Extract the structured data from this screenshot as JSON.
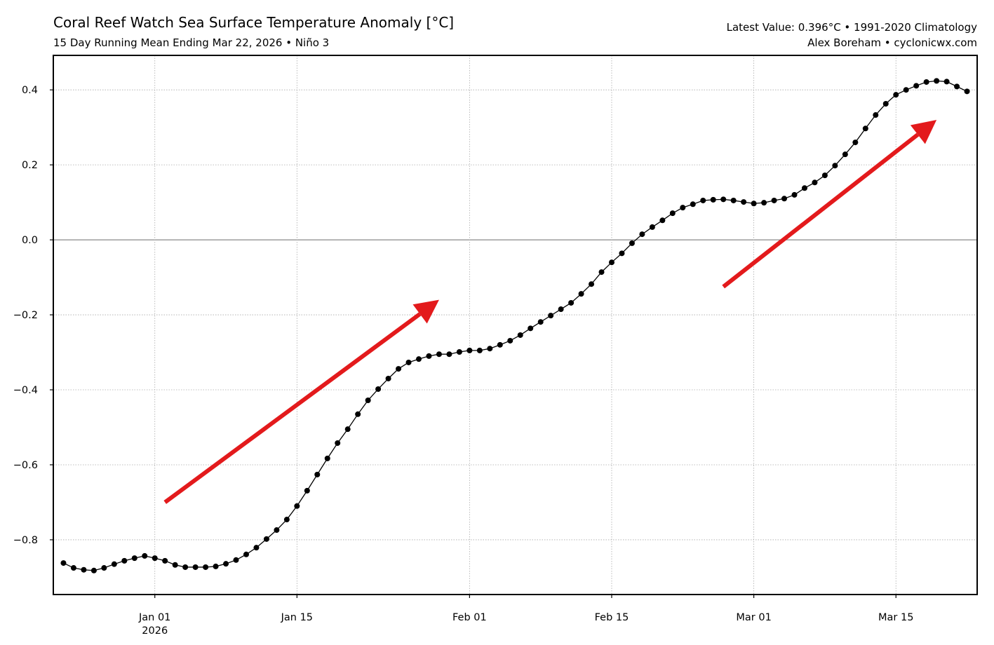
{
  "header": {
    "title": "Coral Reef Watch Sea Surface Temperature Anomaly [°C]",
    "subtitle": "15 Day Running Mean Ending Mar 22, 2026 • Niño 3",
    "info_line1": "Latest Value: 0.396°C • 1991-2020 Climatology",
    "info_line2": "Alex Boreham • cyclonicwx.com"
  },
  "chart_data": {
    "type": "line",
    "title": "Coral Reef Watch Sea Surface Temperature Anomaly [°C]",
    "subtitle": "15 Day Running Mean Ending Mar 22, 2026 • Niño 3",
    "xlabel": "",
    "ylabel": "",
    "xlim": [
      "2025-12-22",
      "2026-03-23"
    ],
    "ylim": [
      -0.946,
      0.492
    ],
    "grid": true,
    "zero_line": true,
    "line_color": "#000000",
    "marker": "circle",
    "arrow_color": "#e31a1c",
    "x_ticks": [
      {
        "date": "2026-01-01",
        "label": "Jan 01",
        "sublabel": "2026"
      },
      {
        "date": "2026-01-15",
        "label": "Jan 15"
      },
      {
        "date": "2026-02-01",
        "label": "Feb 01"
      },
      {
        "date": "2026-02-15",
        "label": "Feb 15"
      },
      {
        "date": "2026-03-01",
        "label": "Mar 01"
      },
      {
        "date": "2026-03-15",
        "label": "Mar 15"
      }
    ],
    "y_ticks": [
      {
        "value": -0.8,
        "label": "−0.8"
      },
      {
        "value": -0.6,
        "label": "−0.6"
      },
      {
        "value": -0.4,
        "label": "−0.4"
      },
      {
        "value": -0.2,
        "label": "−0.2"
      },
      {
        "value": 0.0,
        "label": "0.0"
      },
      {
        "value": 0.2,
        "label": "0.2"
      },
      {
        "value": 0.4,
        "label": "0.4"
      }
    ],
    "start_date": "2025-12-23",
    "values": [
      -0.862,
      -0.875,
      -0.88,
      -0.882,
      -0.875,
      -0.865,
      -0.856,
      -0.849,
      -0.843,
      -0.849,
      -0.856,
      -0.867,
      -0.873,
      -0.873,
      -0.873,
      -0.871,
      -0.864,
      -0.854,
      -0.839,
      -0.821,
      -0.798,
      -0.774,
      -0.746,
      -0.71,
      -0.669,
      -0.626,
      -0.583,
      -0.542,
      -0.505,
      -0.465,
      -0.428,
      -0.398,
      -0.37,
      -0.344,
      -0.327,
      -0.318,
      -0.31,
      -0.305,
      -0.305,
      -0.299,
      -0.295,
      -0.295,
      -0.29,
      -0.28,
      -0.269,
      -0.254,
      -0.236,
      -0.219,
      -0.202,
      -0.185,
      -0.168,
      -0.144,
      -0.118,
      -0.086,
      -0.06,
      -0.036,
      -0.009,
      0.015,
      0.034,
      0.052,
      0.071,
      0.086,
      0.095,
      0.105,
      0.107,
      0.108,
      0.105,
      0.101,
      0.097,
      0.099,
      0.105,
      0.11,
      0.12,
      0.138,
      0.153,
      0.172,
      0.198,
      0.228,
      0.26,
      0.297,
      0.333,
      0.363,
      0.387,
      0.4,
      0.411,
      0.421,
      0.424,
      0.422,
      0.409,
      0.396
    ],
    "annotations": [
      {
        "type": "arrow",
        "start": {
          "date": "2026-01-02",
          "y": -0.7
        },
        "end": {
          "date": "2026-01-29",
          "y": -0.16
        }
      },
      {
        "type": "arrow",
        "start": {
          "date": "2026-02-26",
          "y": -0.125
        },
        "end": {
          "date": "2026-03-19",
          "y": 0.32
        }
      }
    ]
  }
}
